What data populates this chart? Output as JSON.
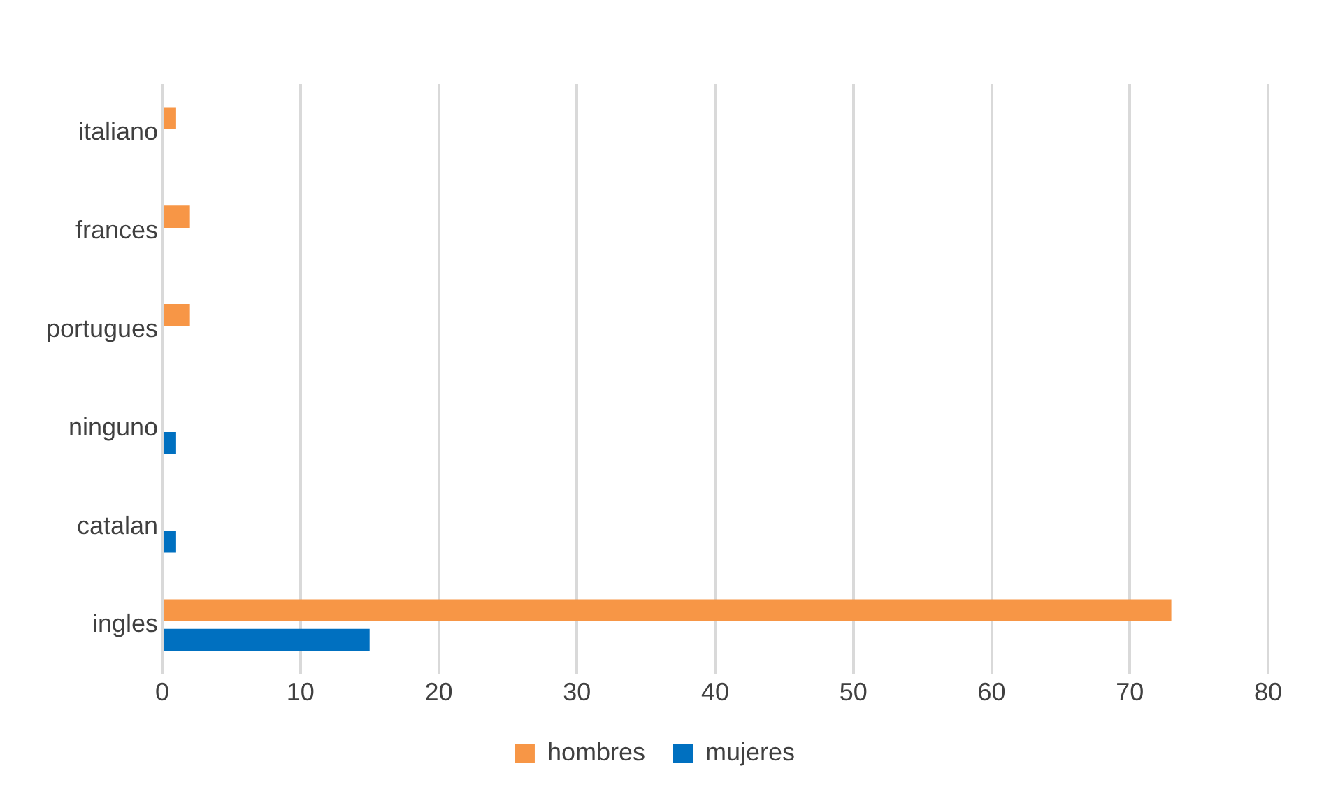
{
  "chart_data": {
    "type": "bar",
    "orientation": "horizontal",
    "categories": [
      "italiano",
      "frances",
      "portugues",
      "ninguno",
      "catalan",
      "ingles"
    ],
    "series": [
      {
        "name": "hombres",
        "color": "#f79646",
        "values": [
          1,
          2,
          2,
          0,
          0,
          73
        ]
      },
      {
        "name": "mujeres",
        "color": "#0070c0",
        "values": [
          0,
          0,
          0,
          1,
          1,
          15
        ]
      }
    ],
    "xlim": [
      0,
      80
    ],
    "xticks": [
      0,
      10,
      20,
      30,
      40,
      50,
      60,
      70,
      80
    ],
    "grid": "x",
    "legend": "bottom"
  }
}
